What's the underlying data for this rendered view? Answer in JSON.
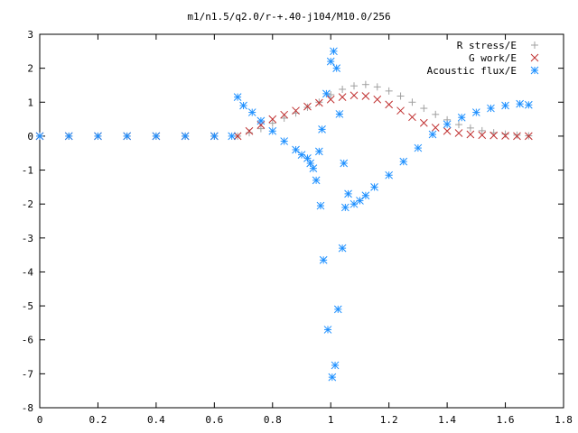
{
  "chart_data": {
    "type": "scatter",
    "title": "m1/n1.5/q2.0/r-+.40-j104/M10.0/256",
    "xlabel": "",
    "ylabel": "",
    "xlim": [
      0,
      1.8
    ],
    "ylim": [
      -8,
      3
    ],
    "xticks": [
      "0",
      "0.2",
      "0.4",
      "0.6",
      "0.8",
      "1",
      "1.2",
      "1.4",
      "1.6",
      "1.8"
    ],
    "yticks": [
      "3",
      "2",
      "1",
      "0",
      "-1",
      "-2",
      "-3",
      "-4",
      "-5",
      "-6",
      "-7",
      "-8"
    ],
    "grid": false,
    "legend_position": "top-right",
    "series": [
      {
        "name": "R stress/E",
        "marker": "+",
        "color": "#a0a0a0",
        "points": [
          [
            0.0,
            0
          ],
          [
            0.1,
            0
          ],
          [
            0.2,
            0
          ],
          [
            0.3,
            0
          ],
          [
            0.4,
            0
          ],
          [
            0.5,
            0
          ],
          [
            0.6,
            0
          ],
          [
            0.68,
            0
          ],
          [
            0.72,
            0.1
          ],
          [
            0.76,
            0.22
          ],
          [
            0.8,
            0.38
          ],
          [
            0.84,
            0.53
          ],
          [
            0.88,
            0.68
          ],
          [
            0.92,
            0.85
          ],
          [
            0.96,
            1.0
          ],
          [
            1.0,
            1.22
          ],
          [
            1.04,
            1.38
          ],
          [
            1.08,
            1.48
          ],
          [
            1.12,
            1.52
          ],
          [
            1.16,
            1.45
          ],
          [
            1.2,
            1.33
          ],
          [
            1.24,
            1.18
          ],
          [
            1.28,
            1.0
          ],
          [
            1.32,
            0.82
          ],
          [
            1.36,
            0.64
          ],
          [
            1.4,
            0.48
          ],
          [
            1.44,
            0.34
          ],
          [
            1.48,
            0.24
          ],
          [
            1.52,
            0.16
          ],
          [
            1.56,
            0.1
          ],
          [
            1.6,
            0.06
          ],
          [
            1.64,
            0.03
          ],
          [
            1.68,
            0.01
          ]
        ]
      },
      {
        "name": "G work/E",
        "marker": "x",
        "color": "#c03030",
        "points": [
          [
            0.0,
            0
          ],
          [
            0.1,
            0
          ],
          [
            0.2,
            0
          ],
          [
            0.3,
            0
          ],
          [
            0.4,
            0
          ],
          [
            0.5,
            0
          ],
          [
            0.6,
            0
          ],
          [
            0.68,
            0
          ],
          [
            0.72,
            0.15
          ],
          [
            0.76,
            0.33
          ],
          [
            0.8,
            0.5
          ],
          [
            0.84,
            0.63
          ],
          [
            0.88,
            0.75
          ],
          [
            0.92,
            0.87
          ],
          [
            0.96,
            0.98
          ],
          [
            1.0,
            1.08
          ],
          [
            1.04,
            1.15
          ],
          [
            1.08,
            1.2
          ],
          [
            1.12,
            1.18
          ],
          [
            1.16,
            1.08
          ],
          [
            1.2,
            0.93
          ],
          [
            1.24,
            0.75
          ],
          [
            1.28,
            0.56
          ],
          [
            1.32,
            0.39
          ],
          [
            1.36,
            0.25
          ],
          [
            1.4,
            0.15
          ],
          [
            1.44,
            0.09
          ],
          [
            1.48,
            0.05
          ],
          [
            1.52,
            0.03
          ],
          [
            1.56,
            0.02
          ],
          [
            1.6,
            0.01
          ],
          [
            1.64,
            0.0
          ],
          [
            1.68,
            0.0
          ]
        ]
      },
      {
        "name": "Acoustic flux/E",
        "marker": "*",
        "color": "#1e90ff",
        "points": [
          [
            0.0,
            0
          ],
          [
            0.1,
            0
          ],
          [
            0.2,
            0
          ],
          [
            0.3,
            0
          ],
          [
            0.4,
            0
          ],
          [
            0.5,
            0
          ],
          [
            0.6,
            0
          ],
          [
            0.66,
            0
          ],
          [
            0.68,
            1.15
          ],
          [
            0.7,
            0.9
          ],
          [
            0.73,
            0.7
          ],
          [
            0.76,
            0.45
          ],
          [
            0.8,
            0.15
          ],
          [
            0.84,
            -0.15
          ],
          [
            0.88,
            -0.4
          ],
          [
            0.9,
            -0.55
          ],
          [
            0.92,
            -0.65
          ],
          [
            0.93,
            -0.8
          ],
          [
            0.94,
            -0.95
          ],
          [
            0.95,
            -1.3
          ],
          [
            0.96,
            -0.45
          ],
          [
            0.965,
            -2.05
          ],
          [
            0.97,
            0.2
          ],
          [
            0.975,
            -3.65
          ],
          [
            0.985,
            1.25
          ],
          [
            0.99,
            -5.7
          ],
          [
            1.0,
            2.2
          ],
          [
            1.005,
            -7.1
          ],
          [
            1.01,
            2.5
          ],
          [
            1.015,
            -6.75
          ],
          [
            1.02,
            2.0
          ],
          [
            1.025,
            -5.1
          ],
          [
            1.03,
            0.65
          ],
          [
            1.04,
            -3.3
          ],
          [
            1.045,
            -0.8
          ],
          [
            1.05,
            -2.1
          ],
          [
            1.06,
            -1.7
          ],
          [
            1.08,
            -2.0
          ],
          [
            1.1,
            -1.9
          ],
          [
            1.12,
            -1.75
          ],
          [
            1.15,
            -1.5
          ],
          [
            1.2,
            -1.15
          ],
          [
            1.25,
            -0.75
          ],
          [
            1.3,
            -0.35
          ],
          [
            1.35,
            0.05
          ],
          [
            1.4,
            0.35
          ],
          [
            1.45,
            0.55
          ],
          [
            1.5,
            0.7
          ],
          [
            1.55,
            0.82
          ],
          [
            1.6,
            0.9
          ],
          [
            1.65,
            0.95
          ],
          [
            1.68,
            0.92
          ]
        ]
      }
    ]
  }
}
